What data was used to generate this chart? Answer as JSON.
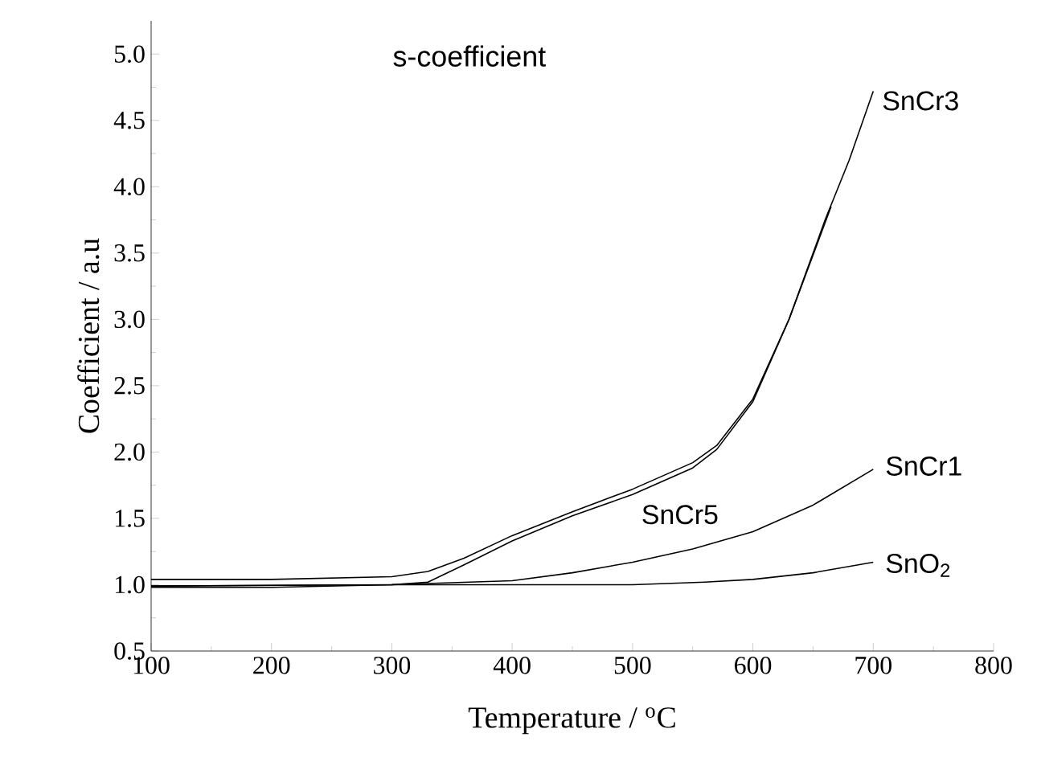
{
  "chart_data": {
    "type": "line",
    "title": "s-coefficient",
    "xlabel": "Temperature / $^{o}$C",
    "ylabel": "Coefficient / a.u",
    "xlim": [
      100,
      800
    ],
    "ylim": [
      0.5,
      5.25
    ],
    "xticks": [
      100,
      200,
      300,
      400,
      500,
      600,
      700,
      800
    ],
    "yticks": [
      {
        "value": 0.5,
        "label": "0.5"
      },
      {
        "value": 1.0,
        "label": "1.0"
      },
      {
        "value": 1.5,
        "label": "1.5"
      },
      {
        "value": 2.0,
        "label": "2.0"
      },
      {
        "value": 2.5,
        "label": "2.5"
      },
      {
        "value": 3.0,
        "label": "3.0"
      },
      {
        "value": 3.5,
        "label": "3.5"
      },
      {
        "value": 4.0,
        "label": "4.0"
      },
      {
        "value": 4.5,
        "label": "4.5"
      },
      {
        "value": 5.0,
        "label": "5.0"
      }
    ],
    "grid": false,
    "legend": false,
    "line_style": "solid",
    "marker": "none",
    "series": [
      {
        "name": "SnCr3",
        "color": "#000000",
        "x": [
          100,
          200,
          300,
          330,
          360,
          400,
          450,
          500,
          550,
          570,
          600,
          630,
          660,
          680,
          700
        ],
        "values": [
          1.04,
          1.04,
          1.06,
          1.1,
          1.2,
          1.37,
          1.55,
          1.72,
          1.92,
          2.05,
          2.4,
          3.0,
          3.75,
          4.2,
          4.72
        ]
      },
      {
        "name": "SnCr5",
        "color": "#000000",
        "x": [
          100,
          200,
          300,
          330,
          360,
          400,
          450,
          500,
          550,
          570,
          600,
          630,
          665
        ],
        "values": [
          0.98,
          0.98,
          1.0,
          1.02,
          1.15,
          1.33,
          1.52,
          1.68,
          1.88,
          2.02,
          2.38,
          3.0,
          3.85
        ]
      },
      {
        "name": "SnCr1",
        "color": "#000000",
        "x": [
          100,
          300,
          400,
          450,
          500,
          550,
          600,
          650,
          700
        ],
        "values": [
          0.99,
          1.0,
          1.03,
          1.09,
          1.17,
          1.27,
          1.4,
          1.6,
          1.87
        ]
      },
      {
        "name": "SnO$_{2}$",
        "color": "#000000",
        "x": [
          100,
          300,
          500,
          560,
          600,
          650,
          700
        ],
        "values": [
          0.99,
          1.0,
          1.0,
          1.02,
          1.04,
          1.09,
          1.17
        ]
      }
    ]
  }
}
